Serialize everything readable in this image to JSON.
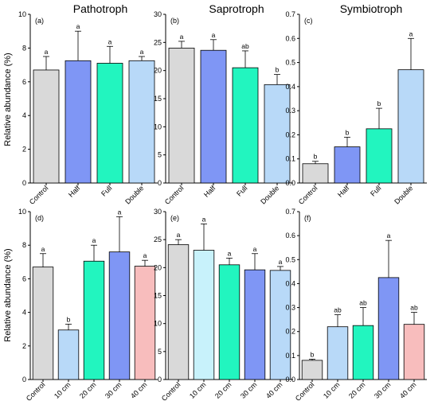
{
  "column_titles": [
    "Pathotroph",
    "Saprotroph",
    "Symbiotroph"
  ],
  "y_axis_label": "Relative abundance (%)",
  "colors": {
    "grey": "#d9d9d9",
    "blue": "#7f96f5",
    "green": "#22f5bf",
    "lightblue": "#b8d9f8",
    "pink": "#f8bdbd",
    "paleblue": "#c8f2fb",
    "axis": "#000000"
  },
  "chart_data": [
    {
      "type": "bar",
      "panel_label": "(a)",
      "categories": [
        "Control",
        "Half",
        "Full",
        "Double"
      ],
      "values": [
        6.7,
        7.25,
        7.1,
        7.25
      ],
      "error_upper": [
        7.5,
        9.0,
        8.1,
        7.5
      ],
      "significance": [
        "a",
        "a",
        "a",
        "a"
      ],
      "bar_colors": [
        "grey",
        "blue",
        "green",
        "lightblue"
      ],
      "ylim": [
        0,
        10
      ],
      "yticks": [
        0,
        2,
        4,
        6,
        8,
        10
      ],
      "ytick_labels": [
        "0",
        "2",
        "4",
        "6",
        "8",
        "10"
      ]
    },
    {
      "type": "bar",
      "panel_label": "(b)",
      "categories": [
        "Control",
        "Half",
        "Full",
        "Double"
      ],
      "values": [
        24.0,
        23.6,
        20.5,
        17.5
      ],
      "error_upper": [
        25.2,
        25.5,
        23.5,
        19.3
      ],
      "significance": [
        "a",
        "a",
        "ab",
        "b"
      ],
      "bar_colors": [
        "grey",
        "blue",
        "green",
        "lightblue"
      ],
      "ylim": [
        0,
        30
      ],
      "yticks": [
        0,
        5,
        10,
        15,
        20,
        25,
        30
      ],
      "ytick_labels": [
        "0",
        "5",
        "10",
        "15",
        "20",
        "25",
        "30"
      ]
    },
    {
      "type": "bar",
      "panel_label": "(c)",
      "categories": [
        "Control",
        "Half",
        "Full",
        "Double"
      ],
      "values": [
        0.08,
        0.15,
        0.225,
        0.47
      ],
      "error_upper": [
        0.09,
        0.19,
        0.31,
        0.6
      ],
      "significance": [
        "b",
        "b",
        "b",
        "a"
      ],
      "bar_colors": [
        "grey",
        "blue",
        "green",
        "lightblue"
      ],
      "ylim": [
        0,
        0.7
      ],
      "yticks": [
        0,
        0.1,
        0.2,
        0.3,
        0.4,
        0.5,
        0.6,
        0.7
      ],
      "ytick_labels": [
        "0.0",
        "0.1",
        "0.2",
        "0.3",
        "0.4",
        "0.5",
        "0.6",
        "0.7"
      ]
    },
    {
      "type": "bar",
      "panel_label": "(d)",
      "categories": [
        "Control",
        "10 cm",
        "20 cm",
        "30 cm",
        "40 cm"
      ],
      "values": [
        6.7,
        2.95,
        7.05,
        7.6,
        6.75
      ],
      "error_upper": [
        7.5,
        3.3,
        8.0,
        9.7,
        7.1
      ],
      "significance": [
        "a",
        "b",
        "a",
        "a",
        "a"
      ],
      "bar_colors": [
        "grey",
        "lightblue",
        "green",
        "blue",
        "pink"
      ],
      "ylim": [
        0,
        10
      ],
      "yticks": [
        0,
        2,
        4,
        6,
        8,
        10
      ],
      "ytick_labels": [
        "0",
        "2",
        "4",
        "6",
        "8",
        "10"
      ]
    },
    {
      "type": "bar",
      "panel_label": "(e)",
      "categories": [
        "Control",
        "10 cm",
        "20 cm",
        "30 cm",
        "40 cm"
      ],
      "values": [
        24.1,
        23.1,
        20.5,
        19.6,
        19.5
      ],
      "error_upper": [
        25.0,
        27.8,
        21.7,
        22.5,
        20.2
      ],
      "significance": [
        "a",
        "a",
        "a",
        "a",
        "a"
      ],
      "bar_colors": [
        "grey",
        "paleblue",
        "green",
        "blue",
        "lightblue"
      ],
      "ylim": [
        0,
        30
      ],
      "yticks": [
        0,
        5,
        10,
        15,
        20,
        25,
        30
      ],
      "ytick_labels": [
        "0",
        "5",
        "10",
        "15",
        "20",
        "25",
        "30"
      ]
    },
    {
      "type": "bar",
      "panel_label": "(f)",
      "categories": [
        "Control",
        "10 cm",
        "20 cm",
        "30 cm",
        "40 cm"
      ],
      "values": [
        0.08,
        0.22,
        0.225,
        0.425,
        0.23
      ],
      "error_upper": [
        0.085,
        0.27,
        0.3,
        0.58,
        0.28
      ],
      "significance": [
        "b",
        "ab",
        "ab",
        "a",
        "ab"
      ],
      "bar_colors": [
        "grey",
        "lightblue",
        "green",
        "blue",
        "pink"
      ],
      "ylim": [
        0,
        0.7
      ],
      "yticks": [
        0,
        0.1,
        0.2,
        0.3,
        0.4,
        0.5,
        0.6,
        0.7
      ],
      "ytick_labels": [
        "0.0",
        "0.1",
        "0.2",
        "0.3",
        "0.4",
        "0.5",
        "0.6",
        "0.7"
      ]
    }
  ]
}
